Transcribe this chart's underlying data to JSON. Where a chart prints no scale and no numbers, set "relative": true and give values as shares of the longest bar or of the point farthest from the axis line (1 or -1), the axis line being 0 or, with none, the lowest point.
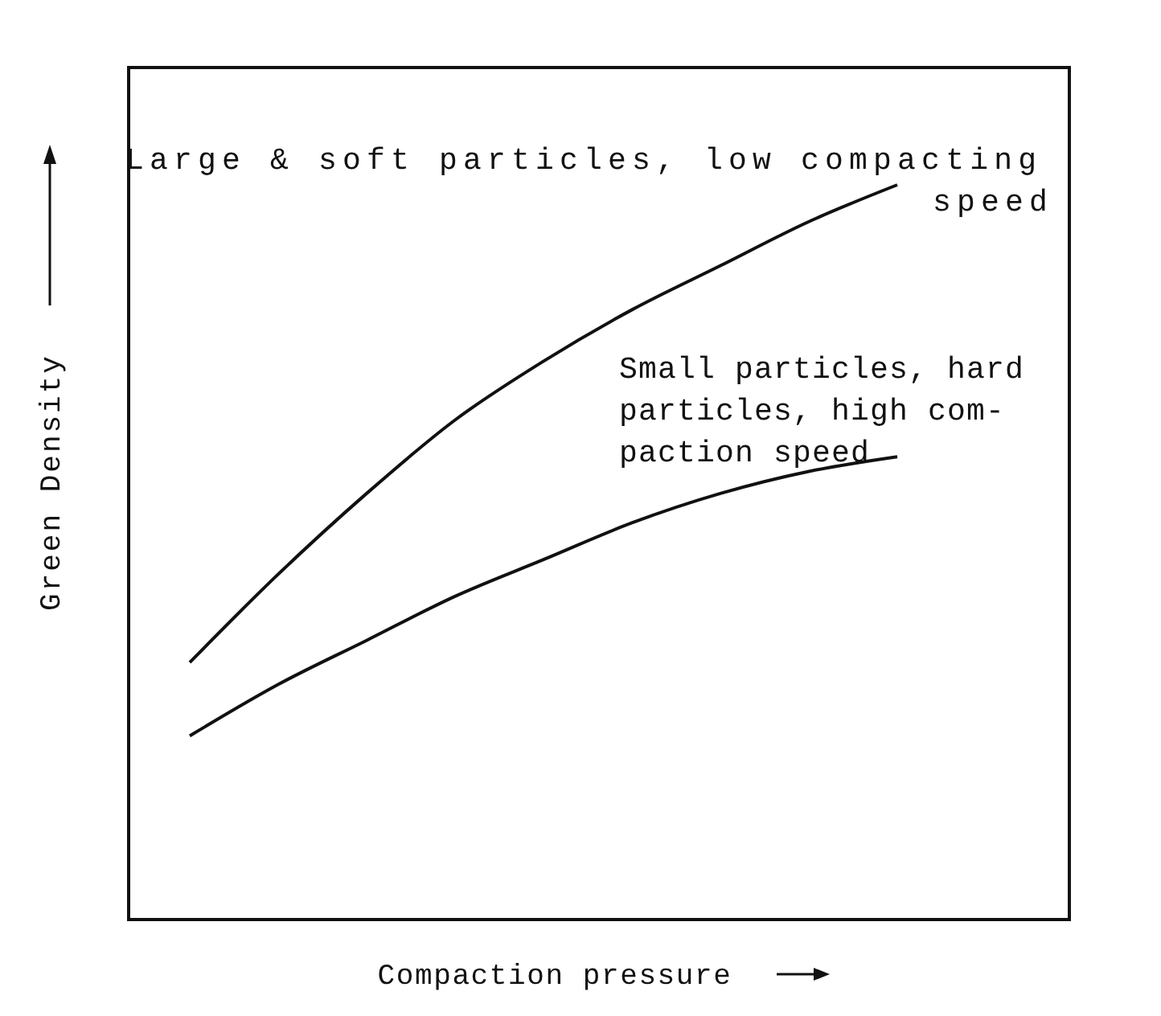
{
  "chart_data": {
    "type": "line",
    "relative": true,
    "xlabel": "Compaction pressure",
    "ylabel": "Green Density",
    "categories": [
      null,
      null,
      null,
      null,
      null,
      null,
      null,
      null,
      null
    ],
    "marker": "none",
    "line_style": "solid",
    "series": [
      {
        "name": "Large & soft particles, low compacting\nspeed",
        "color": "#111111",
        "values": [
          0.35,
          0.47,
          0.58,
          0.68,
          0.76,
          0.83,
          0.89,
          0.95,
          1
        ]
      },
      {
        "name": "Small particles, hard\nparticles, high com-\npaction speed",
        "color": "#111111",
        "values": [
          0.25,
          0.32,
          0.38,
          0.44,
          0.49,
          0.54,
          0.58,
          0.61,
          0.63
        ]
      }
    ]
  }
}
